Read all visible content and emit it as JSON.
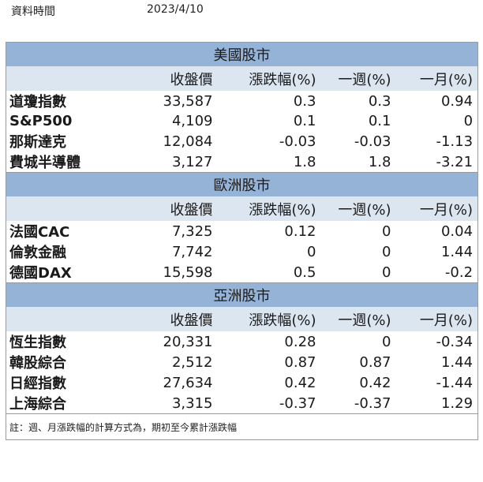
{
  "meta": {
    "label": "資料時間",
    "date": "2023/4/10"
  },
  "columns": [
    "",
    "收盤價",
    "漲跌幅(%)",
    "一週(%)",
    "一月(%)"
  ],
  "colors": {
    "region_header_bg": "#95b3d7",
    "column_header_bg": "#dce6f1",
    "border": "#9a9a9a"
  },
  "sections": [
    {
      "title": "美國股市",
      "rows": [
        {
          "name": "道瓊指數",
          "close": "33,587",
          "change": "0.3",
          "week": "0.3",
          "month": "0.94"
        },
        {
          "name": "S&P500",
          "close": "4,109",
          "change": "0.1",
          "week": "0.1",
          "month": "0"
        },
        {
          "name": "那斯達克",
          "close": "12,084",
          "change": "-0.03",
          "week": "-0.03",
          "month": "-1.13"
        },
        {
          "name": "費城半導體",
          "close": "3,127",
          "change": "1.8",
          "week": "1.8",
          "month": "-3.21"
        }
      ]
    },
    {
      "title": "歐洲股市",
      "rows": [
        {
          "name": "法國CAC",
          "close": "7,325",
          "change": "0.12",
          "week": "0",
          "month": "0.04"
        },
        {
          "name": "倫敦金融",
          "close": "7,742",
          "change": "0",
          "week": "0",
          "month": "1.44"
        },
        {
          "name": "德國DAX",
          "close": "15,598",
          "change": "0.5",
          "week": "0",
          "month": "-0.2"
        }
      ]
    },
    {
      "title": "亞洲股市",
      "rows": [
        {
          "name": "恆生指數",
          "close": "20,331",
          "change": "0.28",
          "week": "0",
          "month": "-0.34"
        },
        {
          "name": "韓股綜合",
          "close": "2,512",
          "change": "0.87",
          "week": "0.87",
          "month": "1.44"
        },
        {
          "name": "日經指數",
          "close": "27,634",
          "change": "0.42",
          "week": "0.42",
          "month": "-1.44"
        },
        {
          "name": "上海綜合",
          "close": "3,315",
          "change": "-0.37",
          "week": "-0.37",
          "month": "1.29"
        }
      ]
    }
  ],
  "note": "註：週、月漲跌幅的計算方式為，期初至今累計漲跌幅"
}
